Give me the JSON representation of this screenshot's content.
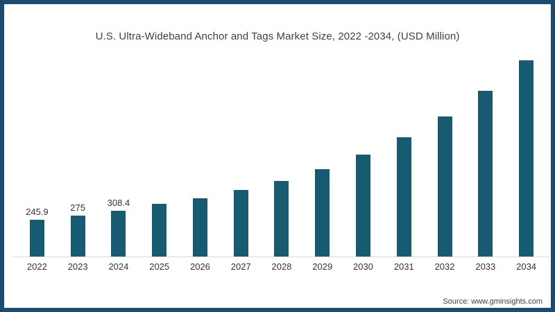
{
  "chart_data": {
    "type": "bar",
    "title": "U.S. Ultra-Wideband Anchor and Tags Market Size, 2022 -2034, (USD Million)",
    "categories": [
      "2022",
      "2023",
      "2024",
      "2025",
      "2026",
      "2027",
      "2028",
      "2029",
      "2030",
      "2031",
      "2032",
      "2033",
      "2034"
    ],
    "values": [
      245.9,
      275,
      308.4,
      354,
      393,
      448,
      509,
      588,
      686,
      801,
      944,
      1115,
      1319
    ],
    "data_labels": [
      "245.9",
      "275",
      "308.4",
      "",
      "",
      "",
      "",
      "",
      "",
      "",
      "",
      "",
      ""
    ],
    "ylabel": "",
    "xlabel": "",
    "ylim": [
      0,
      1400
    ],
    "grid": false,
    "legend_position": "none",
    "bar_color": "#175b72",
    "axis_line_color": "#d9d9d9",
    "border_color": "#1b4b6e",
    "title_color": "#3f3f3f"
  },
  "footer": {
    "source": "Source: www.gminsights.com"
  }
}
